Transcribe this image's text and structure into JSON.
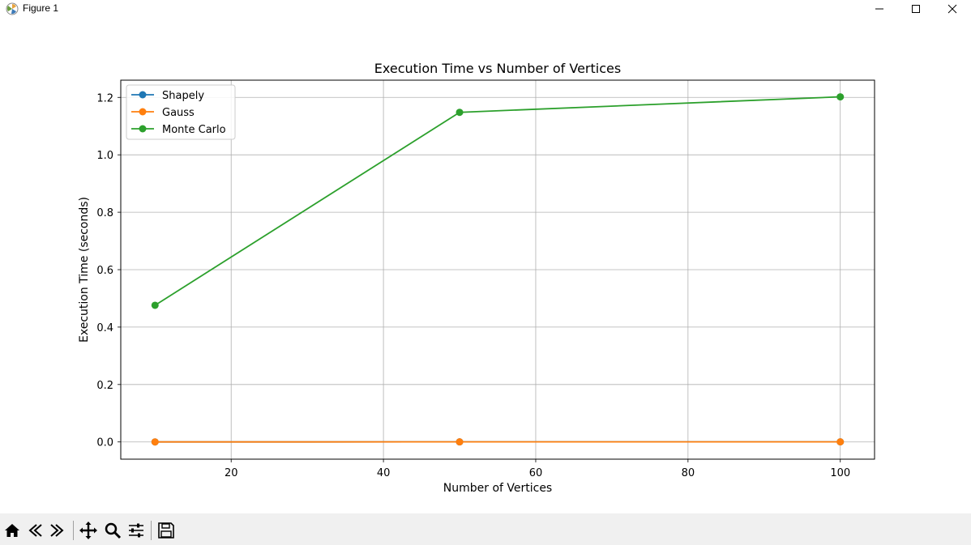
{
  "window": {
    "title": "Figure 1",
    "controls": [
      "minimize",
      "maximize",
      "close"
    ]
  },
  "toolbar": {
    "buttons": [
      "home-icon",
      "back-arrow-icon",
      "forward-arrow-icon",
      "pan-icon",
      "zoom-icon",
      "configure-subplots-icon",
      "save-icon"
    ]
  },
  "chart_data": {
    "type": "line",
    "title": "Execution Time vs Number of Vertices",
    "xlabel": "Number of Vertices",
    "ylabel": "Execution Time (seconds)",
    "xlim": [
      5.5,
      104.5
    ],
    "ylim": [
      -0.06,
      1.26
    ],
    "xticks": [
      20,
      40,
      60,
      80,
      100
    ],
    "xtick_labels": [
      "20",
      "40",
      "60",
      "80",
      "100"
    ],
    "yticks": [
      0.0,
      0.2,
      0.4,
      0.6,
      0.8,
      1.0,
      1.2
    ],
    "ytick_labels": [
      "0.0",
      "0.2",
      "0.4",
      "0.6",
      "0.8",
      "1.0",
      "1.2"
    ],
    "grid": true,
    "legend_position": "top-left",
    "x": [
      10,
      50,
      100
    ],
    "series": [
      {
        "name": "Shapely",
        "color": "#1f77b4",
        "values": [
          0.0001,
          0.0002,
          0.0003
        ]
      },
      {
        "name": "Gauss",
        "color": "#ff7f0e",
        "values": [
          0.0001,
          0.0002,
          0.0003
        ]
      },
      {
        "name": "Monte Carlo",
        "color": "#2ca02c",
        "values": [
          0.476,
          1.148,
          1.202
        ]
      }
    ]
  }
}
